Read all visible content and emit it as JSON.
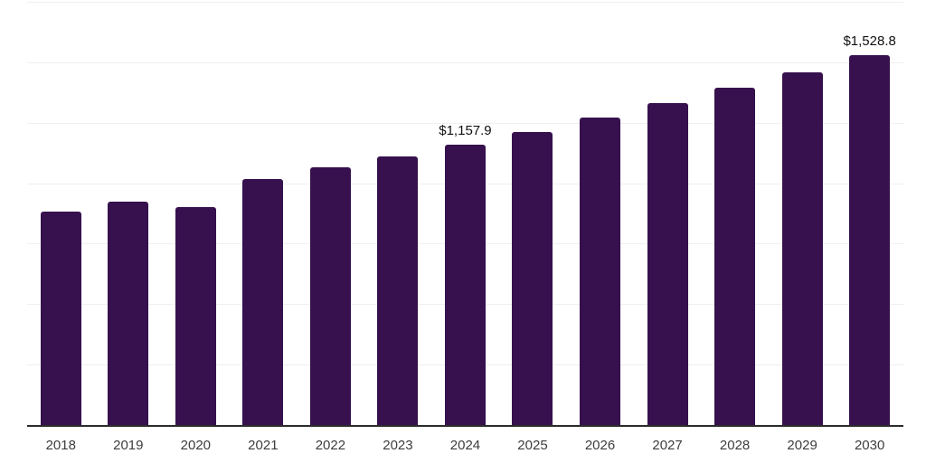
{
  "chart_data": {
    "type": "bar",
    "title": "",
    "xlabel": "",
    "ylabel": "",
    "categories": [
      "2018",
      "2019",
      "2020",
      "2021",
      "2022",
      "2023",
      "2024",
      "2025",
      "2026",
      "2027",
      "2028",
      "2029",
      "2030"
    ],
    "values": [
      882,
      925,
      903,
      1018,
      1066,
      1109,
      1157.9,
      1212.8,
      1270.3,
      1330.5,
      1393.6,
      1459.7,
      1528.8
    ],
    "data_labels": [
      {
        "category": "2024",
        "text": "$1,157.9"
      },
      {
        "category": "2030",
        "text": "$1,528.8"
      }
    ],
    "ylim": [
      0,
      1750
    ],
    "gridline_interval": 250,
    "grid": "horizontal",
    "legend": "none",
    "colors": {
      "bar": "#36114E",
      "gridline": "#efefef",
      "axis": "#2b2b2b",
      "tick_label": "#3d3d3d",
      "data_label": "#111111",
      "background": "#ffffff"
    }
  }
}
